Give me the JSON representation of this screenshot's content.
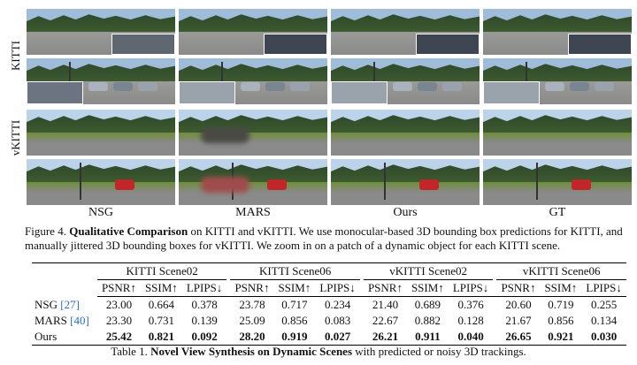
{
  "figure": {
    "row_labels": [
      "KITTI",
      "vKITTI"
    ],
    "column_labels": [
      "NSG",
      "MARS",
      "Ours",
      "GT"
    ],
    "caption_prefix": "Figure 4.",
    "caption_title": "Qualitative Comparison",
    "caption_body": " on KITTI and vKITTI. We use monocular-based 3D bounding box predictions for KITTI, and manually jittered 3D bounding boxes for vKITTI. We zoom in on a patch of a dynamic object for each KITTI scene."
  },
  "table": {
    "groups": [
      "KITTI Scene02",
      "KITTI Scene06",
      "vKITTI Scene02",
      "vKITTI Scene06"
    ],
    "metrics": [
      "PSNR↑",
      "SSIM↑",
      "LPIPS↓"
    ],
    "rows": [
      {
        "method": "NSG ",
        "cite": "[27]",
        "values": [
          "23.00",
          "0.664",
          "0.378",
          "23.78",
          "0.717",
          "0.234",
          "21.40",
          "0.689",
          "0.376",
          "20.60",
          "0.719",
          "0.255"
        ]
      },
      {
        "method": "MARS ",
        "cite": "[40]",
        "values": [
          "23.30",
          "0.731",
          "0.139",
          "25.09",
          "0.856",
          "0.083",
          "22.67",
          "0.882",
          "0.128",
          "21.67",
          "0.856",
          "0.134"
        ]
      },
      {
        "method": "Ours",
        "cite": "",
        "values": [
          "25.42",
          "0.821",
          "0.092",
          "28.20",
          "0.919",
          "0.027",
          "26.21",
          "0.911",
          "0.040",
          "26.65",
          "0.921",
          "0.030"
        ]
      }
    ],
    "caption_prefix": "Table 1.",
    "caption_title": "Novel View Synthesis on Dynamic Scenes",
    "caption_body": " with predicted or noisy 3D trackings."
  },
  "colors": {
    "cite": "#2a6fc9",
    "sky_kitti": "#9fbcd9",
    "sky_vkitti": "#bcd3ea",
    "road": "#8a8a8a",
    "grass": "#6f8f3a",
    "trees": "#2f4a2a",
    "car_red": "#c0262a"
  }
}
